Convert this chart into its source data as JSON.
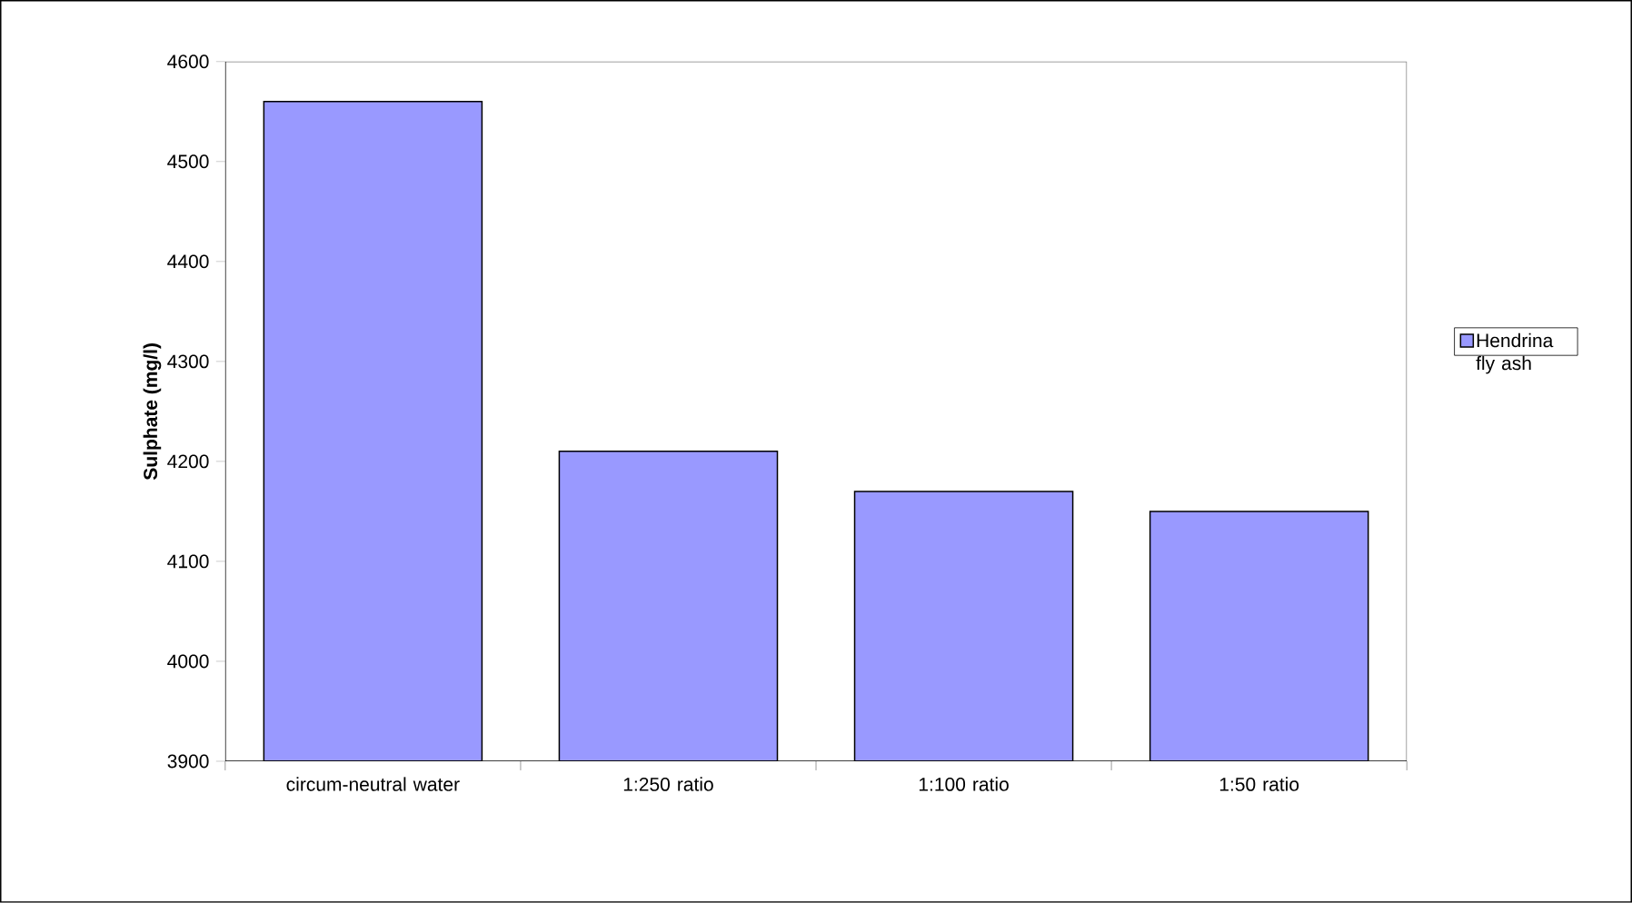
{
  "chart_data": {
    "type": "bar",
    "ylabel": "Sulphate (mg/l)",
    "categories": [
      "circum-neutral water",
      "1:250 ratio",
      "1:100 ratio",
      "1:50 ratio"
    ],
    "series": [
      {
        "name": "Hendrina fly ash",
        "color": "#9999ff",
        "values": [
          4560,
          4210,
          4170,
          4150
        ]
      }
    ],
    "ylim": [
      3900,
      4600
    ],
    "yticks": [
      3900,
      4000,
      4100,
      4200,
      4300,
      4400,
      4500,
      4600
    ],
    "legend": "right"
  }
}
